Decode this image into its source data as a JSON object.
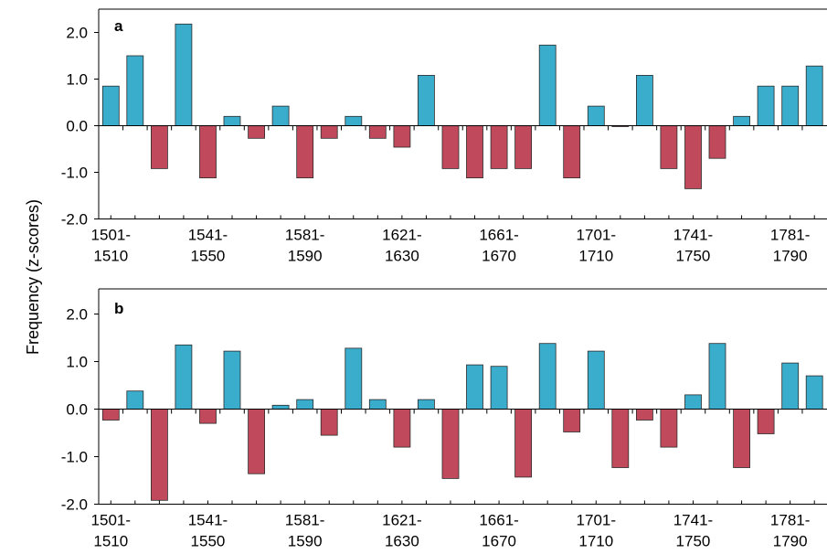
{
  "chart_data": {
    "type": "bar",
    "ylabel": "Frequency (z-scores)",
    "ylim": [
      -2.0,
      2.0
    ],
    "ytick_values": [
      -2.0,
      -1.0,
      0.0,
      1.0,
      2.0
    ],
    "ytick_labels": [
      "-2.0",
      "-1.0",
      "0.0",
      "1.0",
      "2.0"
    ],
    "categories": [
      "1501-1510",
      "1511-1520",
      "1521-1530",
      "1531-1540",
      "1541-1550",
      "1551-1560",
      "1561-1570",
      "1571-1580",
      "1581-1590",
      "1591-1600",
      "1601-1610",
      "1611-1620",
      "1621-1630",
      "1631-1640",
      "1641-1650",
      "1651-1660",
      "1661-1670",
      "1671-1680",
      "1681-1690",
      "1691-1700",
      "1701-1710",
      "1711-1720",
      "1721-1730",
      "1731-1740",
      "1741-1750",
      "1751-1760",
      "1761-1770",
      "1771-1780",
      "1781-1790",
      "1791-1800"
    ],
    "tick_labels": [
      {
        "index": 0,
        "line1": "1501-",
        "line2": "1510"
      },
      {
        "index": 4,
        "line1": "1541-",
        "line2": "1550"
      },
      {
        "index": 8,
        "line1": "1581-",
        "line2": "1590"
      },
      {
        "index": 12,
        "line1": "1621-",
        "line2": "1630"
      },
      {
        "index": 16,
        "line1": "1661-",
        "line2": "1670"
      },
      {
        "index": 20,
        "line1": "1701-",
        "line2": "1710"
      },
      {
        "index": 24,
        "line1": "1741-",
        "line2": "1750"
      },
      {
        "index": 28,
        "line1": "1781-",
        "line2": "1790"
      }
    ],
    "colors": {
      "positive": "#3aaccc",
      "negative": "#c04a5b",
      "outline": "#2a2a2a"
    },
    "panels": [
      {
        "label": "a",
        "values": [
          0.85,
          1.5,
          -0.92,
          2.18,
          -1.12,
          0.2,
          -0.27,
          0.42,
          -1.12,
          -0.27,
          0.2,
          -0.27,
          -0.46,
          1.08,
          -0.92,
          -1.12,
          -0.92,
          -0.92,
          1.73,
          -1.12,
          0.42,
          -0.02,
          1.08,
          -0.92,
          -1.35,
          -0.7,
          0.2,
          0.85,
          0.85,
          1.28
        ]
      },
      {
        "label": "b",
        "values": [
          -0.23,
          0.38,
          -1.92,
          1.35,
          -0.3,
          1.22,
          -1.36,
          0.08,
          0.2,
          -0.55,
          1.28,
          0.2,
          -0.8,
          0.2,
          -1.46,
          0.93,
          0.9,
          -1.43,
          1.38,
          -0.48,
          1.22,
          -1.23,
          -0.23,
          -0.8,
          0.3,
          1.38,
          -1.23,
          -0.52,
          0.97,
          0.7
        ]
      }
    ]
  }
}
